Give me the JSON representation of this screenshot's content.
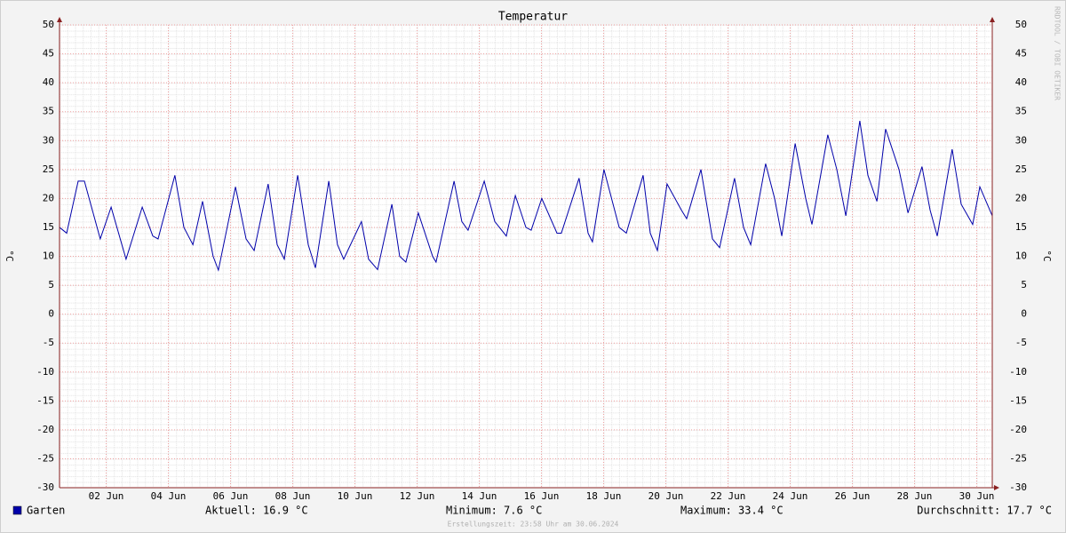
{
  "chart_data": {
    "type": "line",
    "title": "Temperatur",
    "y_label": "°C",
    "watermark": "RRDTOOL / TOBI OETIKER",
    "footer": "Erstellungszeit: 23:58 Uhr am 30.06.2024",
    "legend_stats": [
      "Aktuell: 16.9 °C",
      "Minimum: 7.6 °C",
      "Maximum: 33.4 °C",
      "Durchschnitt: 17.7 °C"
    ],
    "xlim": [
      1,
      31
    ],
    "xticks": [
      {
        "value": 2.5,
        "label": "02 Jun"
      },
      {
        "value": 4.5,
        "label": "04 Jun"
      },
      {
        "value": 6.5,
        "label": "06 Jun"
      },
      {
        "value": 8.5,
        "label": "08 Jun"
      },
      {
        "value": 10.5,
        "label": "10 Jun"
      },
      {
        "value": 12.5,
        "label": "12 Jun"
      },
      {
        "value": 14.5,
        "label": "14 Jun"
      },
      {
        "value": 16.5,
        "label": "16 Jun"
      },
      {
        "value": 18.5,
        "label": "18 Jun"
      },
      {
        "value": 20.5,
        "label": "20 Jun"
      },
      {
        "value": 22.5,
        "label": "22 Jun"
      },
      {
        "value": 24.5,
        "label": "24 Jun"
      },
      {
        "value": 26.5,
        "label": "26 Jun"
      },
      {
        "value": 28.5,
        "label": "28 Jun"
      },
      {
        "value": 30.5,
        "label": "30 Jun"
      }
    ],
    "ylim": [
      -30,
      50
    ],
    "yticks": [
      -30,
      -25,
      -20,
      -15,
      -10,
      -5,
      0,
      5,
      10,
      15,
      20,
      25,
      30,
      35,
      40,
      45,
      50
    ],
    "grid": true,
    "x": [
      1.0,
      1.23,
      1.6,
      1.8,
      2.31,
      2.66,
      3.14,
      3.66,
      4.0,
      4.17,
      4.71,
      5.0,
      5.29,
      5.6,
      5.94,
      6.11,
      6.66,
      7.0,
      7.26,
      7.71,
      8.0,
      8.23,
      8.66,
      9.0,
      9.23,
      9.66,
      9.94,
      10.14,
      10.71,
      10.94,
      11.23,
      11.69,
      11.94,
      12.14,
      12.54,
      13.0,
      13.11,
      13.69,
      13.94,
      14.14,
      14.66,
      15.0,
      15.37,
      15.66,
      16.0,
      16.17,
      16.51,
      17.0,
      17.14,
      17.71,
      18.0,
      18.14,
      18.51,
      19.0,
      19.23,
      19.77,
      20.0,
      20.23,
      20.54,
      21.0,
      21.17,
      21.63,
      22.0,
      22.23,
      22.71,
      23.0,
      23.23,
      23.71,
      24.0,
      24.23,
      24.66,
      25.0,
      25.2,
      25.71,
      26.0,
      26.29,
      26.74,
      27.0,
      27.29,
      27.57,
      28.0,
      28.29,
      28.74,
      29.0,
      29.23,
      29.71,
      30.0,
      30.37,
      30.6,
      31.0
    ],
    "series": [
      {
        "name": "Garten",
        "color": "#0000aa",
        "values": [
          15,
          14,
          23,
          23,
          13,
          18.5,
          9.5,
          18.5,
          13.5,
          13,
          24,
          15,
          12,
          19.5,
          10,
          7.6,
          22,
          13,
          11,
          22.5,
          12,
          9.5,
          24,
          12,
          8,
          23,
          12,
          9.5,
          16,
          9.5,
          7.7,
          19,
          10,
          9,
          17.5,
          10,
          9,
          23,
          16,
          14.5,
          23,
          16,
          13.5,
          20.5,
          15,
          14.5,
          20,
          14,
          14,
          23.5,
          14,
          12.5,
          25,
          15,
          14,
          24,
          14,
          11,
          22.5,
          18,
          16.5,
          25,
          13,
          11.5,
          23.5,
          15,
          12,
          26,
          20,
          13.5,
          29.5,
          20,
          15.5,
          31,
          25,
          17,
          33.4,
          24,
          19.5,
          32,
          25,
          17.5,
          25.5,
          18,
          13.5,
          28.5,
          19,
          15.5,
          22,
          17
        ]
      }
    ]
  }
}
